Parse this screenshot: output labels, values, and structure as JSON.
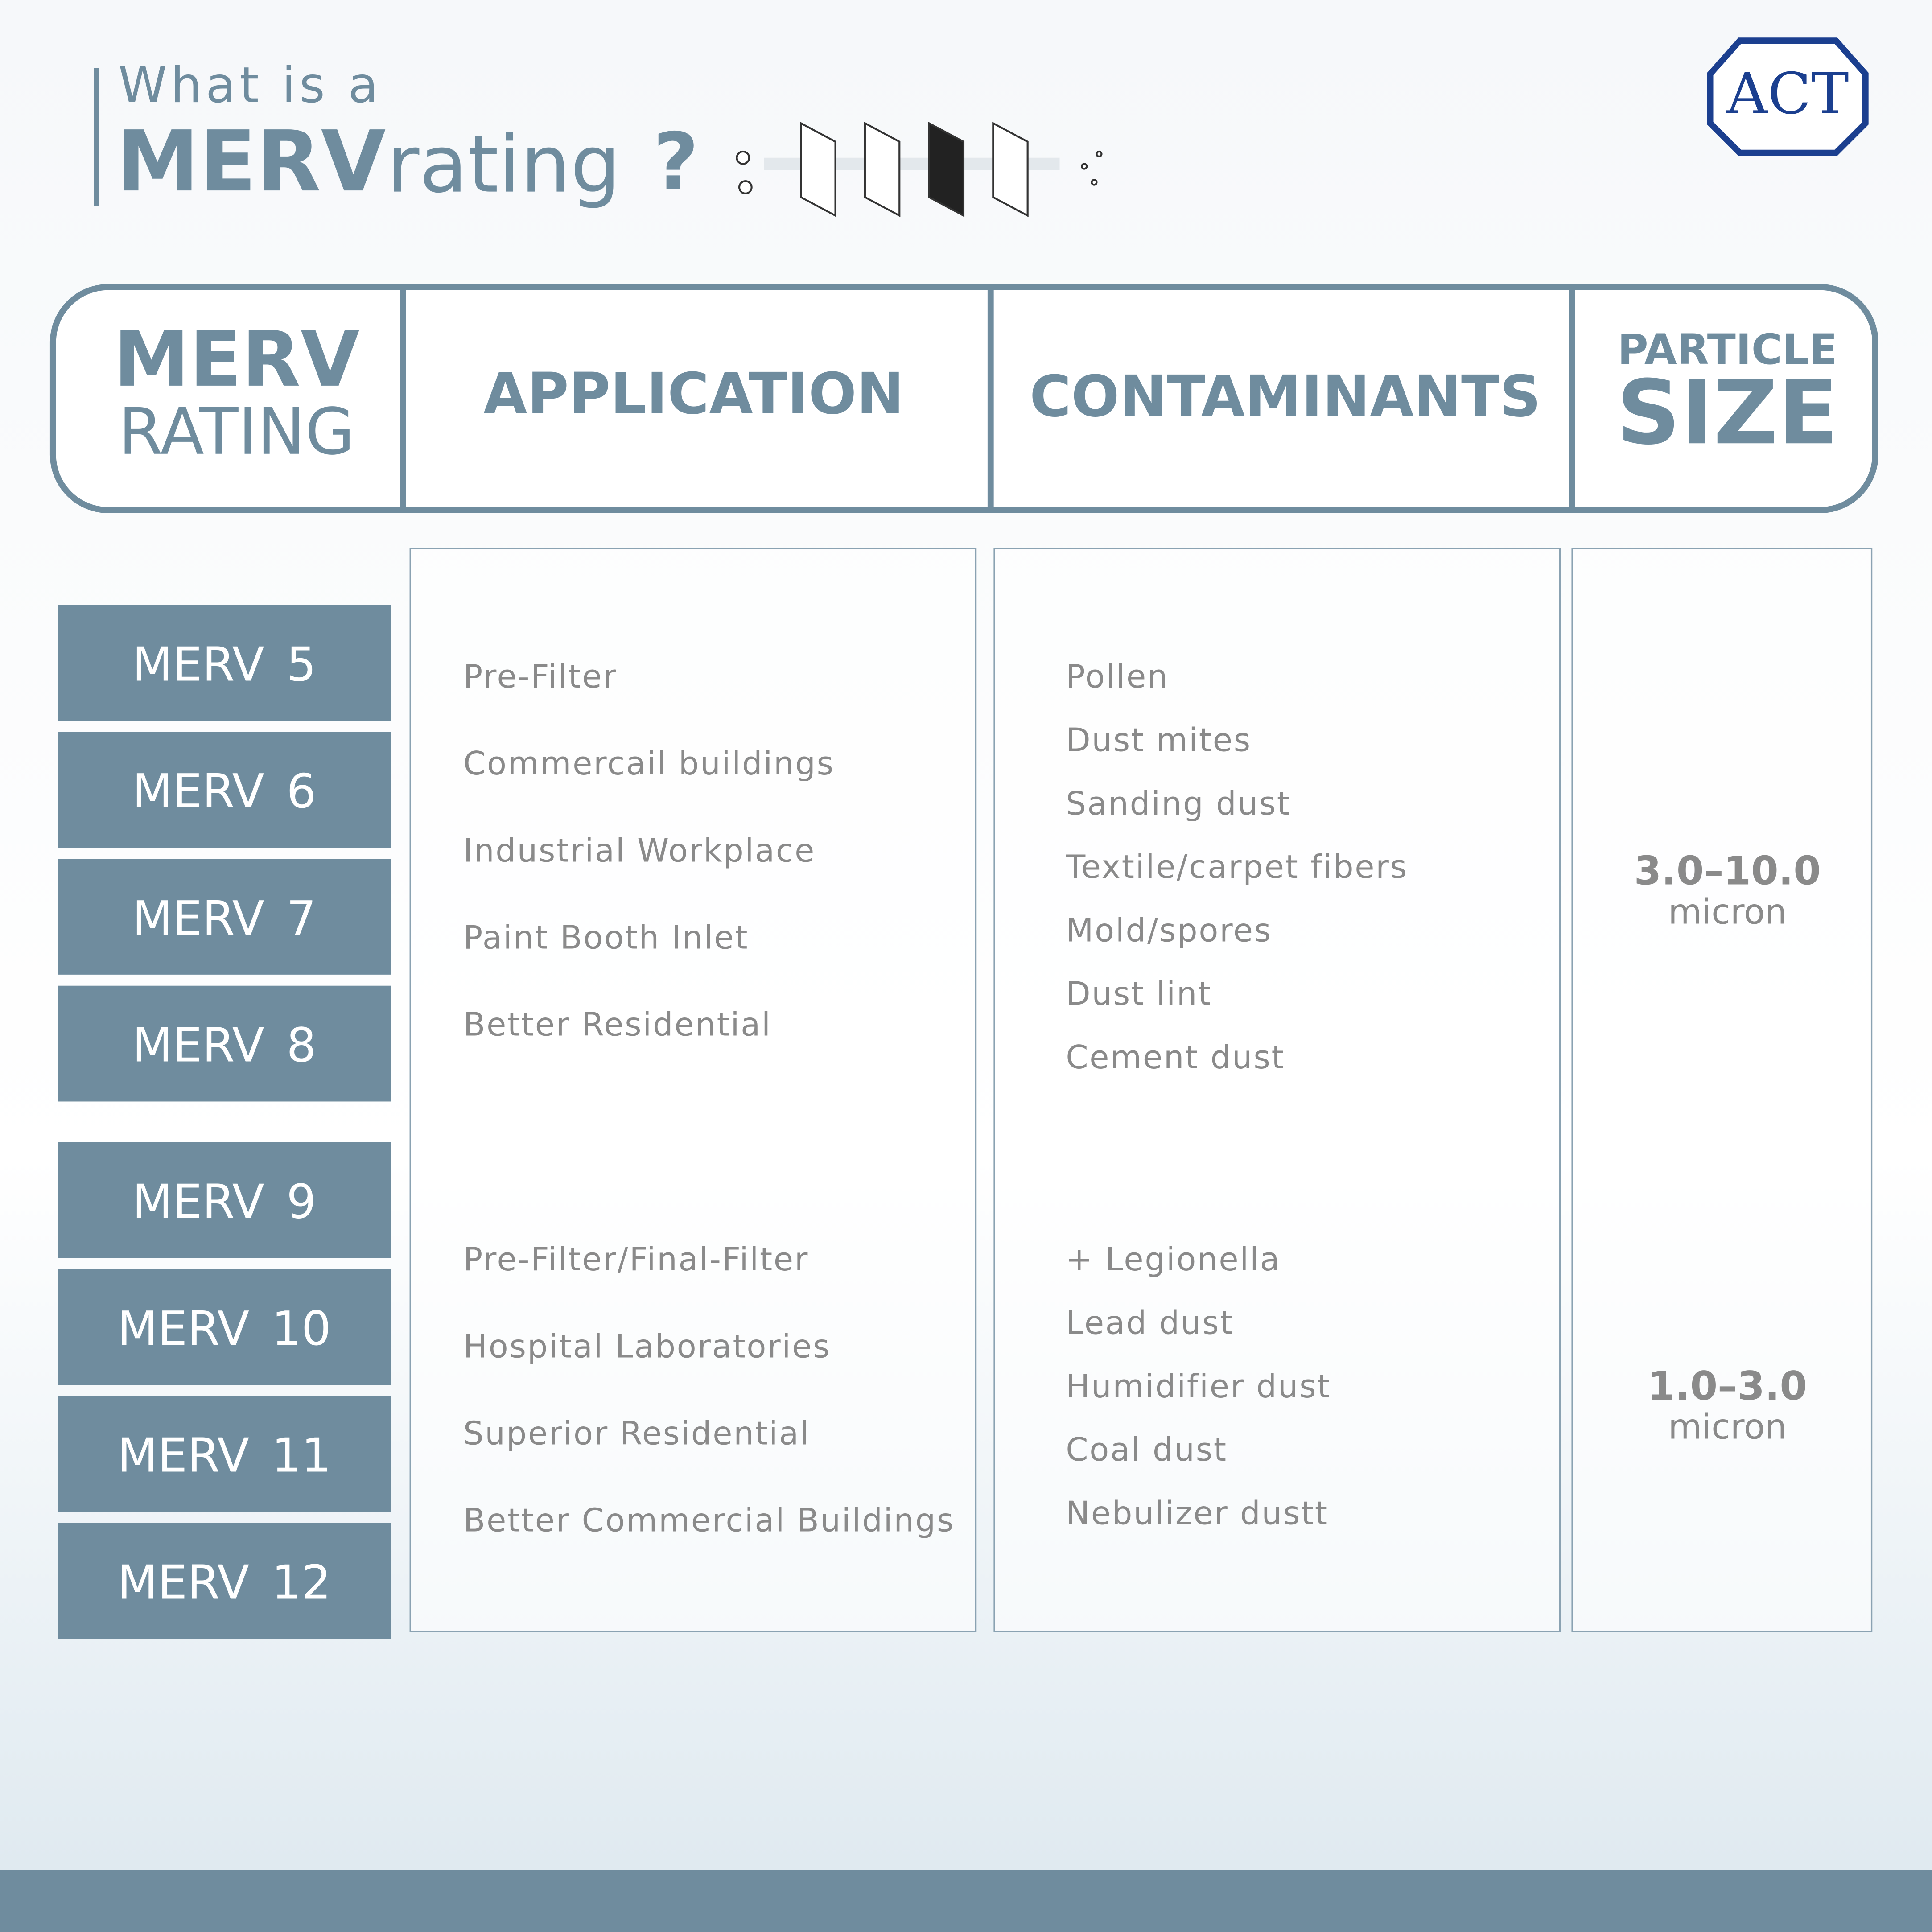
{
  "header": {
    "kicker": "What is a",
    "title_bold": "MERV",
    "title_rest": "rating",
    "question_mark": "?"
  },
  "logo": "ACT",
  "table": {
    "columns": [
      {
        "lines": [
          "MERV",
          "RATING"
        ]
      },
      {
        "lines": [
          "APPLICATION"
        ]
      },
      {
        "lines": [
          "CONTAMINANTS"
        ]
      },
      {
        "lines": [
          "PARTICLE",
          "SIZE"
        ]
      }
    ],
    "groups": [
      {
        "ratings": [
          "MERV 5",
          "MERV 6",
          "MERV 7",
          "MERV 8"
        ],
        "applications": [
          "Pre-Filter",
          "Commercail buildings",
          "Industrial Workplace",
          "Paint Booth Inlet",
          "Better Residential"
        ],
        "contaminants": [
          "Pollen",
          "Dust mites",
          "Sanding dust",
          "Textile/carpet fibers",
          "Mold/spores",
          "Dust lint",
          "Cement dust"
        ],
        "size": "3.0–10.0",
        "unit": "micron"
      },
      {
        "ratings": [
          "MERV 9",
          "MERV 10",
          "MERV 11",
          "MERV 12"
        ],
        "applications": [
          "Pre-Filter/Final-Filter",
          "Hospital Laboratories",
          "Superior Residential",
          "Better Commercial Buildings"
        ],
        "contaminants": [
          "+ Legionella",
          "Lead dust",
          "Humidifier dust",
          "Coal dust",
          "Nebulizer dustt"
        ],
        "size": "1.0–3.0",
        "unit": "micron"
      }
    ]
  }
}
